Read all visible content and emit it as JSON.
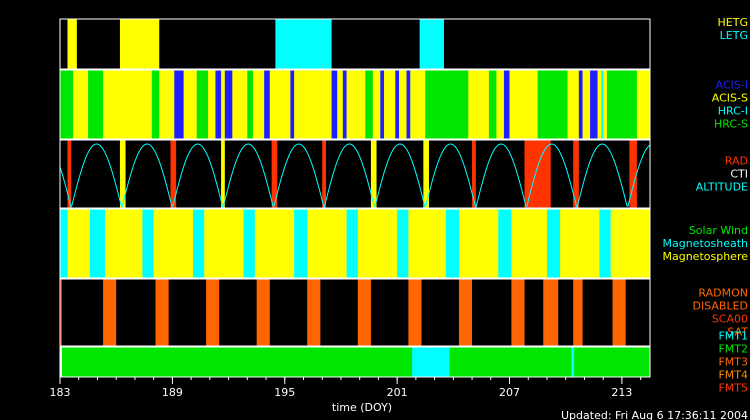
{
  "colors": {
    "black": "#000000",
    "white": "#ffffff",
    "yellow": "#ffff00",
    "cyan": "#00ffff",
    "blue": "#2020ff",
    "green": "#00e600",
    "red": "#ff3300",
    "orange": "#ff6600",
    "darkorange": "#ff8800"
  },
  "chart_data": {
    "type": "timeline",
    "xlabel": "time (DOY)",
    "xlim": [
      183,
      214.5
    ],
    "xticks": [
      183,
      189,
      195,
      201,
      207,
      213
    ],
    "updated": "Updated: Fri Aug  6 17:36:11 2004",
    "panels": [
      {
        "legend": [
          {
            "label": "HETG",
            "color": "#ffff00"
          },
          {
            "label": "LETG",
            "color": "#00ffff"
          }
        ],
        "segments": [
          {
            "start": 183.4,
            "end": 183.9,
            "color": "#ffff00"
          },
          {
            "start": 186.2,
            "end": 188.3,
            "color": "#ffff00"
          },
          {
            "start": 194.5,
            "end": 197.5,
            "color": "#00ffff"
          },
          {
            "start": 202.2,
            "end": 203.5,
            "color": "#00ffff"
          }
        ],
        "curve": false
      },
      {
        "legend": [
          {
            "label": "ACIS-I",
            "color": "#2020ff"
          },
          {
            "label": "ACIS-S",
            "color": "#ffff00"
          },
          {
            "label": "HRC-I",
            "color": "#00ffff"
          },
          {
            "label": "HRC-S",
            "color": "#00e600"
          }
        ],
        "background": "#ffff00",
        "segments": [
          {
            "start": 183.0,
            "end": 183.7,
            "color": "#00e600"
          },
          {
            "start": 184.5,
            "end": 185.3,
            "color": "#00e600"
          },
          {
            "start": 187.9,
            "end": 188.3,
            "color": "#00e600"
          },
          {
            "start": 189.1,
            "end": 189.6,
            "color": "#2020ff"
          },
          {
            "start": 190.3,
            "end": 190.9,
            "color": "#00e600"
          },
          {
            "start": 191.3,
            "end": 191.6,
            "color": "#2020ff"
          },
          {
            "start": 191.8,
            "end": 192.2,
            "color": "#2020ff"
          },
          {
            "start": 193.0,
            "end": 193.3,
            "color": "#00e600"
          },
          {
            "start": 193.9,
            "end": 194.2,
            "color": "#2020ff"
          },
          {
            "start": 195.3,
            "end": 195.5,
            "color": "#2020ff"
          },
          {
            "start": 197.5,
            "end": 197.8,
            "color": "#2020ff"
          },
          {
            "start": 198.1,
            "end": 198.3,
            "color": "#2020ff"
          },
          {
            "start": 199.3,
            "end": 199.7,
            "color": "#00e600"
          },
          {
            "start": 200.1,
            "end": 200.3,
            "color": "#2020ff"
          },
          {
            "start": 200.9,
            "end": 201.1,
            "color": "#2020ff"
          },
          {
            "start": 201.5,
            "end": 201.7,
            "color": "#2020ff"
          },
          {
            "start": 202.5,
            "end": 204.8,
            "color": "#00e600"
          },
          {
            "start": 205.9,
            "end": 206.3,
            "color": "#00e600"
          },
          {
            "start": 206.7,
            "end": 207.0,
            "color": "#2020ff"
          },
          {
            "start": 208.5,
            "end": 210.1,
            "color": "#00e600"
          },
          {
            "start": 210.7,
            "end": 210.9,
            "color": "#2020ff"
          },
          {
            "start": 211.3,
            "end": 211.7,
            "color": "#2020ff"
          },
          {
            "start": 212.2,
            "end": 213.8,
            "color": "#00e600"
          },
          {
            "start": 211.9,
            "end": 212.0,
            "color": "#00ffff"
          }
        ],
        "curve": false
      },
      {
        "legend": [
          {
            "label": "RAD",
            "color": "#ff3300"
          },
          {
            "label": "CTI",
            "color": "#ffffff"
          },
          {
            "label": "ALTITUDE",
            "color": "#00ffff"
          }
        ],
        "segments": [
          {
            "start": 183.4,
            "end": 183.6,
            "color": "#ff3300"
          },
          {
            "start": 186.2,
            "end": 186.5,
            "color": "#ffff00"
          },
          {
            "start": 188.9,
            "end": 189.2,
            "color": "#ff3300"
          },
          {
            "start": 191.6,
            "end": 191.8,
            "color": "#ffff00"
          },
          {
            "start": 194.3,
            "end": 194.6,
            "color": "#ff3300"
          },
          {
            "start": 197.0,
            "end": 197.2,
            "color": "#ff3300"
          },
          {
            "start": 199.6,
            "end": 199.9,
            "color": "#ffff00"
          },
          {
            "start": 202.4,
            "end": 202.7,
            "color": "#ffff00"
          },
          {
            "start": 205.0,
            "end": 205.2,
            "color": "#ff3300"
          },
          {
            "start": 207.8,
            "end": 209.2,
            "color": "#ff3300"
          },
          {
            "start": 210.4,
            "end": 210.7,
            "color": "#ff3300"
          },
          {
            "start": 213.4,
            "end": 213.8,
            "color": "#ff3300"
          }
        ],
        "curve": true,
        "curve_period": 2.7,
        "curve_phase": 183.6
      },
      {
        "legend": [
          {
            "label": "Solar Wind",
            "color": "#00e600"
          },
          {
            "label": "Magnetosheath",
            "color": "#00ffff"
          },
          {
            "label": "Magnetosphere",
            "color": "#ffff00"
          }
        ],
        "background": "#ffff00",
        "segments": [
          {
            "start": 183.0,
            "end": 183.4,
            "color": "#00ffff"
          },
          {
            "start": 184.6,
            "end": 185.4,
            "color": "#00ffff"
          },
          {
            "start": 187.4,
            "end": 188.0,
            "color": "#00ffff"
          },
          {
            "start": 190.1,
            "end": 190.7,
            "color": "#00ffff"
          },
          {
            "start": 192.8,
            "end": 193.4,
            "color": "#00ffff"
          },
          {
            "start": 195.5,
            "end": 196.2,
            "color": "#00ffff"
          },
          {
            "start": 198.3,
            "end": 198.9,
            "color": "#00ffff"
          },
          {
            "start": 201.0,
            "end": 201.6,
            "color": "#00ffff"
          },
          {
            "start": 203.6,
            "end": 204.3,
            "color": "#00ffff"
          },
          {
            "start": 206.4,
            "end": 207.1,
            "color": "#00ffff"
          },
          {
            "start": 209.0,
            "end": 209.7,
            "color": "#00ffff"
          },
          {
            "start": 211.8,
            "end": 212.4,
            "color": "#00ffff"
          }
        ],
        "curve": false
      },
      {
        "legend": [
          {
            "label": "RADMON",
            "color": "#ff6600"
          },
          {
            "label": "DISABLED",
            "color": "#ff6600"
          },
          {
            "label": "SCA00",
            "color": "#ff3300"
          },
          {
            "label": "SAT",
            "color": "#ff6600"
          }
        ],
        "segments": [
          {
            "start": 183.0,
            "end": 183.1,
            "color": "#ff3300"
          },
          {
            "start": 185.3,
            "end": 186.0,
            "color": "#ff6600"
          },
          {
            "start": 188.1,
            "end": 188.8,
            "color": "#ff6600"
          },
          {
            "start": 190.8,
            "end": 191.5,
            "color": "#ff6600"
          },
          {
            "start": 193.5,
            "end": 194.2,
            "color": "#ff6600"
          },
          {
            "start": 196.2,
            "end": 196.9,
            "color": "#ff6600"
          },
          {
            "start": 198.9,
            "end": 199.6,
            "color": "#ff6600"
          },
          {
            "start": 201.6,
            "end": 202.3,
            "color": "#ff6600"
          },
          {
            "start": 204.3,
            "end": 205.0,
            "color": "#ff6600"
          },
          {
            "start": 207.1,
            "end": 207.8,
            "color": "#ff6600"
          },
          {
            "start": 208.8,
            "end": 209.6,
            "color": "#ff6600"
          },
          {
            "start": 210.4,
            "end": 210.9,
            "color": "#ff6600"
          },
          {
            "start": 212.5,
            "end": 213.2,
            "color": "#ff6600"
          }
        ],
        "curve": false
      },
      {
        "legend": [
          {
            "label": "FMT1",
            "color": "#00ffff"
          },
          {
            "label": "FMT2",
            "color": "#00e600"
          },
          {
            "label": "FMT3",
            "color": "#ff6600"
          },
          {
            "label": "FMT4",
            "color": "#ff8800"
          },
          {
            "label": "FMT5",
            "color": "#ff3300"
          }
        ],
        "background": "#00e600",
        "segments": [
          {
            "start": 183.0,
            "end": 183.1,
            "color": "#ffffff"
          },
          {
            "start": 201.8,
            "end": 203.8,
            "color": "#00ffff"
          },
          {
            "start": 210.3,
            "end": 210.45,
            "color": "#00ffff"
          }
        ],
        "curve": false
      }
    ]
  }
}
